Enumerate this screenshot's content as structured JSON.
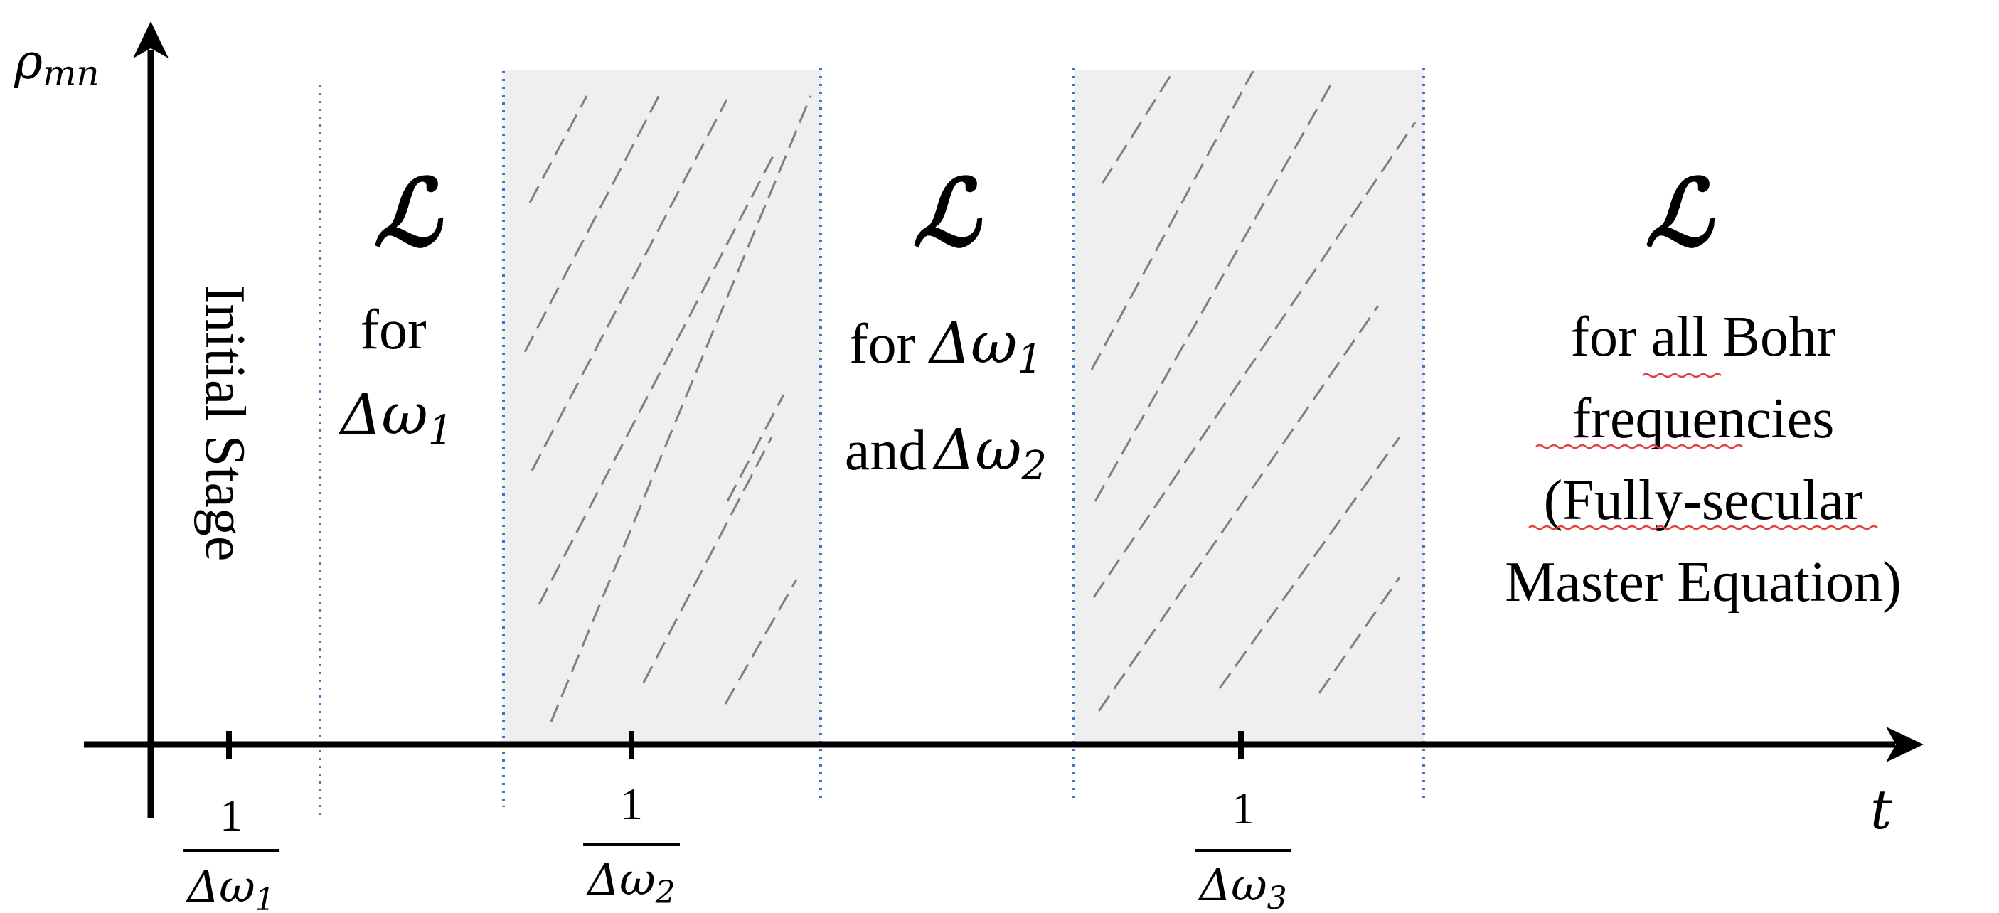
{
  "axes": {
    "y_label": "ρ",
    "y_label_sub": "mn",
    "x_label": "t"
  },
  "ticks": [
    {
      "numerator": "1",
      "denominator": "Δω",
      "sub": "1"
    },
    {
      "numerator": "1",
      "denominator": "Δω",
      "sub": "2"
    },
    {
      "numerator": "1",
      "denominator": "Δω",
      "sub": "3"
    }
  ],
  "regions": {
    "initial": {
      "text": "Initial Stage"
    },
    "r1": {
      "symbol": "ℒ",
      "line1": "for",
      "line2_base": "Δω",
      "line2_sub": "1"
    },
    "r2": {
      "symbol": "ℒ",
      "line1_prefix": "for",
      "line1_base": "Δω",
      "line1_sub": "1",
      "line2_prefix": "and",
      "line2_base": "Δω",
      "line2_sub": "2"
    },
    "r3": {
      "symbol": "ℒ",
      "line1": "for all Bohr",
      "line2": "frequencies",
      "line3": "(Fully-secular",
      "line4": "Master Equation)"
    }
  },
  "colors": {
    "axis": "#000000",
    "divider": "#4472c4",
    "shade": "#efefef",
    "hatch": "#7f7f7f",
    "spell_underline": "#e04040"
  }
}
